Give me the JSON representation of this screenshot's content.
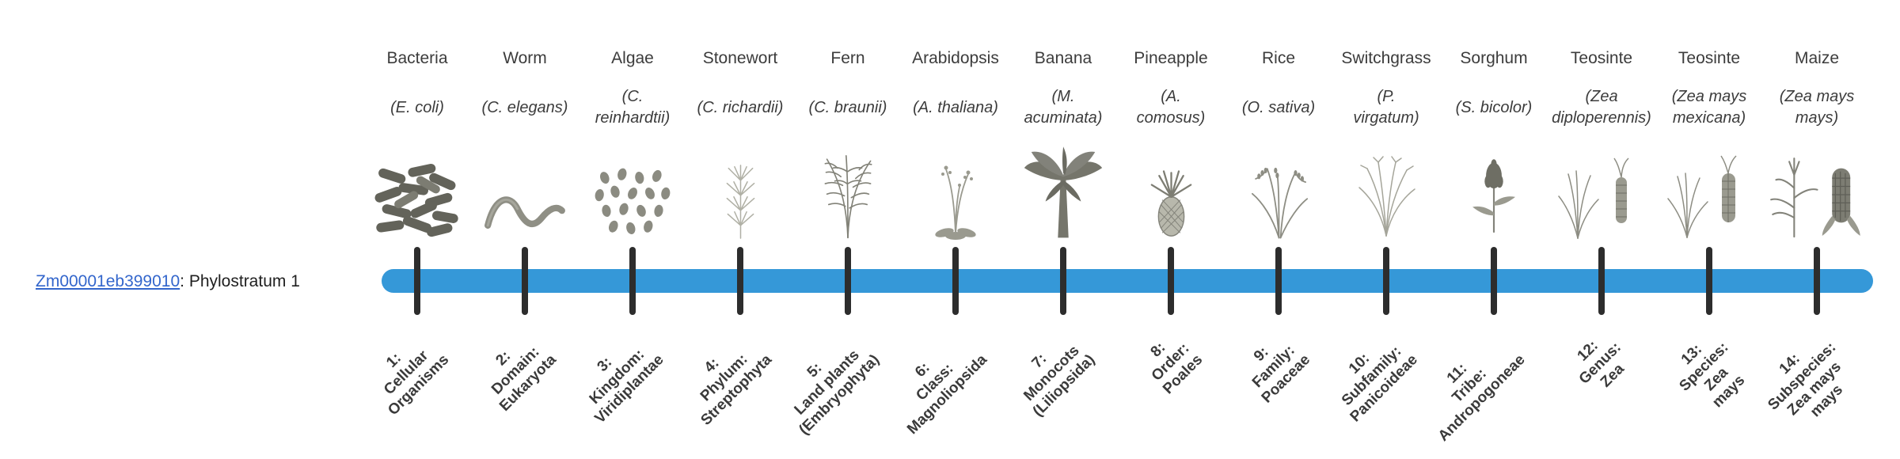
{
  "gene": {
    "id": "Zm00001eb399010",
    "suffix": ": Phylostratum 1"
  },
  "timeline": {
    "bar_color": "#3598d8",
    "tick_color": "#2d2d2d",
    "link_color": "#3366cc"
  },
  "columns": [
    {
      "name": "Bacteria",
      "latin": [
        "(E. coli)"
      ],
      "icon": "bacteria-icon",
      "stratum": [
        "1:",
        "Cellular",
        "Organisms"
      ]
    },
    {
      "name": "Worm",
      "latin": [
        "(C. elegans)"
      ],
      "icon": "worm-icon",
      "stratum": [
        "2:",
        "Domain:",
        "Eukaryota"
      ]
    },
    {
      "name": "Algae",
      "latin": [
        "(C.",
        "reinhardtii)"
      ],
      "icon": "algae-icon",
      "stratum": [
        "3:",
        "Kingdom:",
        "Viridiplantae"
      ]
    },
    {
      "name": "Stonewort",
      "latin": [
        "(C. richardii)"
      ],
      "icon": "stonewort-icon",
      "stratum": [
        "4:",
        "Phylum:",
        "Streptophyta"
      ]
    },
    {
      "name": "Fern",
      "latin": [
        "(C. braunii)"
      ],
      "icon": "fern-icon",
      "stratum": [
        "5:",
        "Land plants",
        "(Embryophyta)"
      ]
    },
    {
      "name": "Arabidopsis",
      "latin": [
        "(A. thaliana)"
      ],
      "icon": "arabidopsis-icon",
      "stratum": [
        "6:",
        "Class:",
        "Magnoliopsida"
      ]
    },
    {
      "name": "Banana",
      "latin": [
        "(M.",
        "acuminata)"
      ],
      "icon": "banana-icon",
      "stratum": [
        "7:",
        "Monocots",
        "(Liliopsida)"
      ]
    },
    {
      "name": "Pineapple",
      "latin": [
        "(A.",
        "comosus)"
      ],
      "icon": "pineapple-icon",
      "stratum": [
        "8:",
        "Order:",
        "Poales"
      ]
    },
    {
      "name": "Rice",
      "latin": [
        "(O. sativa)"
      ],
      "icon": "rice-icon",
      "stratum": [
        "9:",
        "Family:",
        "Poaceae"
      ]
    },
    {
      "name": "Switchgrass",
      "latin": [
        "(P.",
        "virgatum)"
      ],
      "icon": "switchgrass-icon",
      "stratum": [
        "10:",
        "Subfamily:",
        "Panicoideae"
      ]
    },
    {
      "name": "Sorghum",
      "latin": [
        "(S. bicolor)"
      ],
      "icon": "sorghum-icon",
      "stratum": [
        "11:",
        "Tribe:",
        "Andropogoneae"
      ]
    },
    {
      "name": "Teosinte",
      "latin": [
        "(Zea",
        "diploperennis)"
      ],
      "icon": "teosinte-diploperennis-icon",
      "stratum": [
        "12:",
        "Genus:",
        "Zea"
      ]
    },
    {
      "name": "Teosinte",
      "latin": [
        "(Zea mays",
        "mexicana)"
      ],
      "icon": "teosinte-mexicana-icon",
      "stratum": [
        "13:",
        "Species:",
        "Zea",
        "mays"
      ]
    },
    {
      "name": "Maize",
      "latin": [
        "(Zea mays",
        "mays)"
      ],
      "icon": "maize-icon",
      "stratum": [
        "14:",
        "Subspecies:",
        "Zea mays",
        "mays"
      ]
    }
  ]
}
